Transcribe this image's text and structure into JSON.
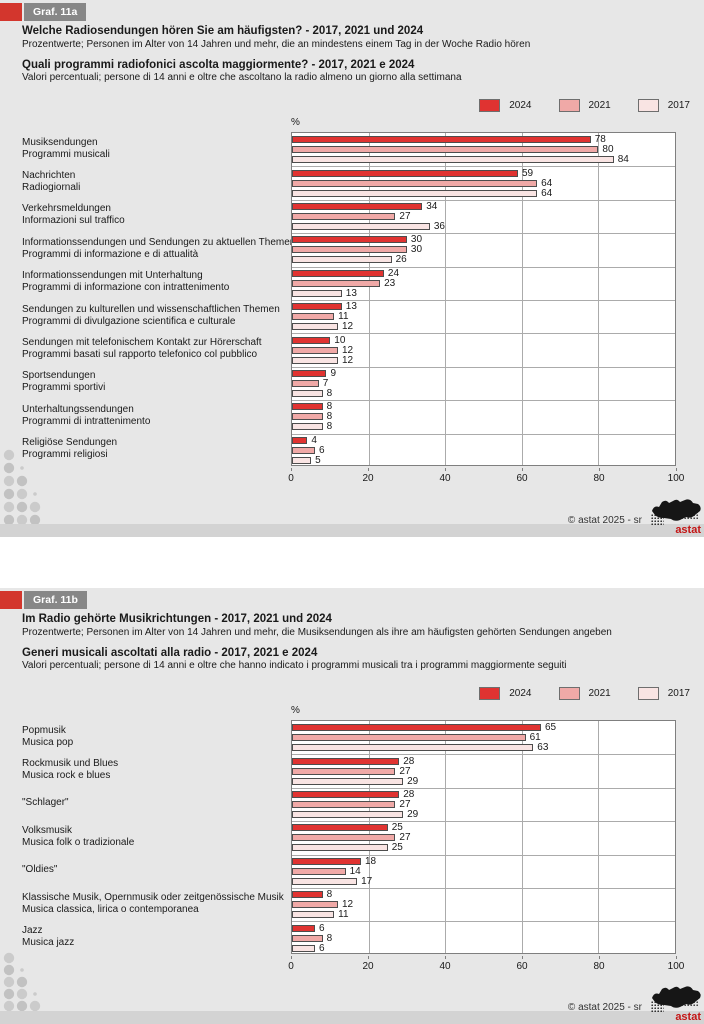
{
  "legend": {
    "items": [
      {
        "label": "2024",
        "color_key": "series_2024"
      },
      {
        "label": "2021",
        "color_key": "series_2021"
      },
      {
        "label": "2017",
        "color_key": "series_2017"
      }
    ]
  },
  "colors": {
    "series_2024": "#E03331",
    "series_2021": "#F0A9A7",
    "series_2017": "#F9E4E3",
    "bar_border": "#4D4D4D",
    "block_bg": "#E7E7E7",
    "strip": "#D3D3D3",
    "plot_border": "#7F7F7F",
    "gridline": "#ABABAB",
    "tag_red": "#D3362D",
    "tag_gray": "#878787",
    "logo_red": "#C41616"
  },
  "charts": [
    {
      "tag": "Graf. 11a",
      "title_de": "Welche Radiosendungen hören Sie am häufigsten? - 2017, 2021 und 2024",
      "subtitle_de": "Prozentwerte; Personen im Alter von 14 Jahren und mehr, die an mindestens einem Tag in der Woche Radio hören",
      "title_it": "Quali programmi radiofonici ascolta maggiormente? - 2017, 2021 e 2024",
      "subtitle_it": "Valori percentuali; persone di 14 anni e oltre che ascoltano la radio almeno un giorno alla settimana",
      "unit": "%",
      "footer": "©  astat 2025 - sr",
      "logo_label": "astat",
      "chart_data": {
        "type": "bar",
        "orientation": "horizontal",
        "xlim": [
          0,
          100
        ],
        "xticks": [
          0,
          20,
          40,
          60,
          80,
          100
        ],
        "grid": "vertical-and-group-separators",
        "legend_position": "top-right",
        "series_names": [
          "2024",
          "2021",
          "2017"
        ],
        "categories": [
          {
            "label_de": "Musiksendungen",
            "label_it": "Programmi musicali",
            "values": [
              78,
              80,
              84
            ]
          },
          {
            "label_de": "Nachrichten",
            "label_it": "Radiogiornali",
            "values": [
              59,
              64,
              64
            ]
          },
          {
            "label_de": "Verkehrsmeldungen",
            "label_it": "Informazioni sul traffico",
            "values": [
              34,
              27,
              36
            ]
          },
          {
            "label_de": "Informationssendungen und Sendungen zu aktuellen Themen",
            "label_it": "Programmi di informazione e di attualità",
            "values": [
              30,
              30,
              26
            ]
          },
          {
            "label_de": "Informationssendungen mit Unterhaltung",
            "label_it": "Programmi di informazione con intrattenimento",
            "values": [
              24,
              23,
              13
            ]
          },
          {
            "label_de": "Sendungen zu kulturellen und wissenschaftlichen Themen",
            "label_it": "Programmi di divulgazione scientifica e culturale",
            "values": [
              13,
              11,
              12
            ]
          },
          {
            "label_de": "Sendungen mit telefonischem Kontakt zur Hörerschaft",
            "label_it": "Programmi basati sul rapporto telefonico col pubblico",
            "values": [
              10,
              12,
              12
            ]
          },
          {
            "label_de": "Sportsendungen",
            "label_it": "Programmi sportivi",
            "values": [
              9,
              7,
              8
            ]
          },
          {
            "label_de": "Unterhaltungssendungen",
            "label_it": "Programmi di intrattenimento",
            "values": [
              8,
              8,
              8
            ]
          },
          {
            "label_de": "Religiöse Sendungen",
            "label_it": "Programmi religiosi",
            "values": [
              4,
              6,
              5
            ]
          }
        ]
      }
    },
    {
      "tag": "Graf. 11b",
      "title_de": "Im Radio gehörte Musikrichtungen - 2017, 2021 und 2024",
      "subtitle_de": "Prozentwerte; Personen im Alter von 14 Jahren und mehr, die Musiksendungen als ihre am häufigsten gehörten Sendungen angeben",
      "title_it": "Generi musicali ascoltati alla radio - 2017, 2021 e 2024",
      "subtitle_it": "Valori percentuali; persone di 14 anni e oltre che hanno indicato i programmi musicali tra i programmi maggiormente seguiti",
      "unit": "%",
      "footer": "©  astat 2025 - sr",
      "logo_label": "astat",
      "chart_data": {
        "type": "bar",
        "orientation": "horizontal",
        "xlim": [
          0,
          100
        ],
        "xticks": [
          0,
          20,
          40,
          60,
          80,
          100
        ],
        "grid": "vertical-and-group-separators",
        "legend_position": "top-right",
        "series_names": [
          "2024",
          "2021",
          "2017"
        ],
        "categories": [
          {
            "label_de": "Popmusik",
            "label_it": "Musica pop",
            "values": [
              65,
              61,
              63
            ]
          },
          {
            "label_de": "Rockmusik und Blues",
            "label_it": "Musica rock e blues",
            "values": [
              28,
              27,
              29
            ]
          },
          {
            "label_de": "\"Schlager\"",
            "label_it": "",
            "values": [
              28,
              27,
              29
            ]
          },
          {
            "label_de": "Volksmusik",
            "label_it": "Musica folk o tradizionale",
            "values": [
              25,
              27,
              25
            ]
          },
          {
            "label_de": "\"Oldies\"",
            "label_it": "",
            "values": [
              18,
              14,
              17
            ]
          },
          {
            "label_de": "Klassische Musik, Opernmusik oder zeitgenössische Musik",
            "label_it": "Musica classica, lirica o contemporanea",
            "values": [
              8,
              12,
              11
            ]
          },
          {
            "label_de": "Jazz",
            "label_it": "Musica jazz",
            "values": [
              6,
              8,
              6
            ]
          }
        ]
      }
    }
  ]
}
